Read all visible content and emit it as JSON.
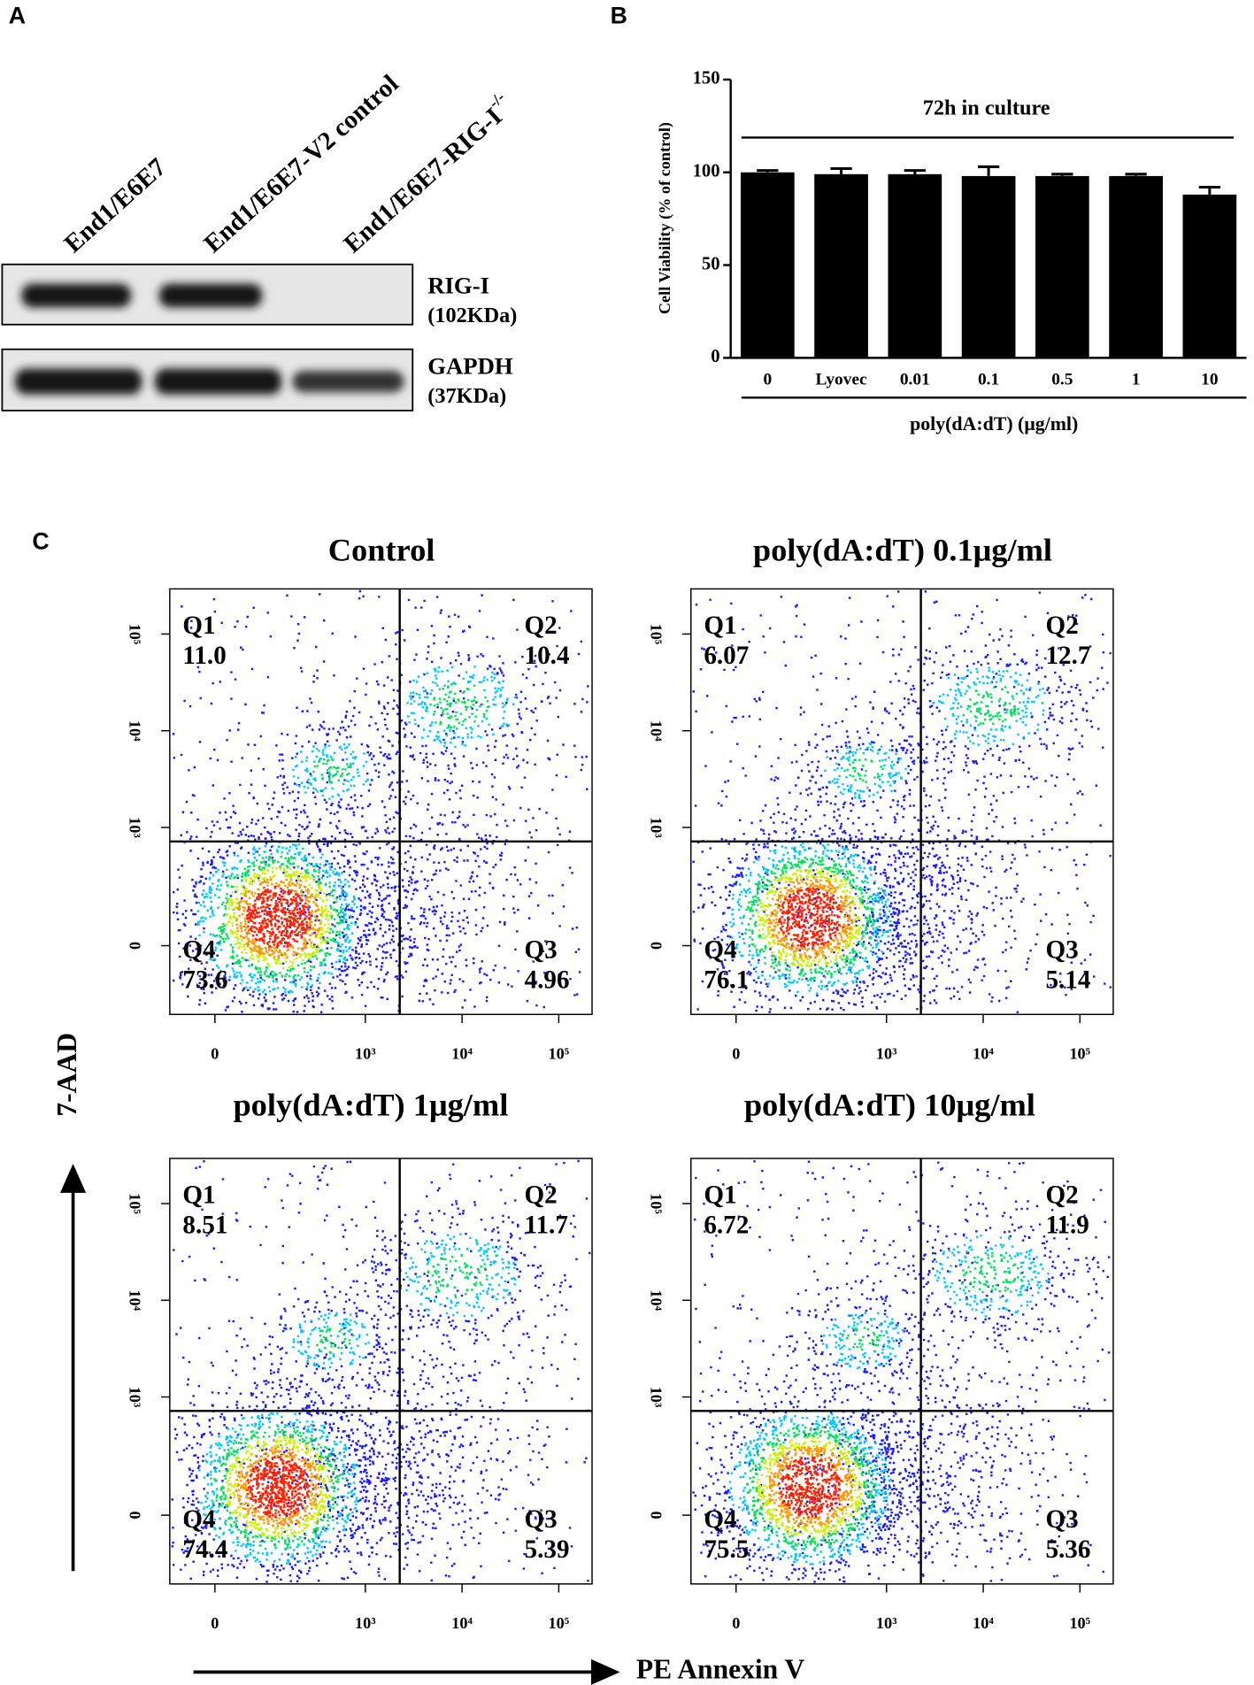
{
  "panel_labels": [
    "A",
    "B",
    "C"
  ],
  "western_blot": {
    "lanes": [
      {
        "text": "End1/E6E7"
      },
      {
        "text": "End1/E6E7-V2 control"
      },
      {
        "text": "End1/E6E7-RIG-I",
        "superscript": "-/-"
      }
    ],
    "bands": [
      {
        "name": "RIG-I",
        "size": "(102KDa)"
      },
      {
        "name": "GAPDH",
        "size": "(37KDa)"
      }
    ]
  },
  "flow_axes": {
    "xlabel": "PE Annexin V",
    "ylabel": "7-AAD"
  },
  "chart_data": [
    {
      "type": "bar",
      "annotation": "72h in culture",
      "ylabel": "Cell Viability (% of control)",
      "xlabel": "poly(dA:dT) (μg/ml)",
      "categories": [
        "0",
        "Lyovec",
        "0.01",
        "0.1",
        "0.5",
        "1",
        "10"
      ],
      "values": [
        100,
        99,
        99,
        98,
        98,
        98,
        88
      ],
      "errors": [
        1,
        3,
        2,
        5,
        1,
        1,
        4
      ],
      "color": "#000000",
      "ylim": [
        0,
        150
      ],
      "yticks": [
        0,
        50,
        100,
        150
      ]
    },
    {
      "type": "flow",
      "title": "Control",
      "quadrants": [
        {
          "name": "Q1",
          "percent": "11.0"
        },
        {
          "name": "Q2",
          "percent": "10.4"
        },
        {
          "name": "Q3",
          "percent": "4.96"
        },
        {
          "name": "Q4",
          "percent": "73.6"
        }
      ],
      "xticks": [
        0,
        {
          "value": 1000,
          "label": "10³"
        },
        {
          "value": 10000,
          "label": "10⁴"
        },
        {
          "value": 100000,
          "label": "10⁵"
        }
      ],
      "yticks": [
        0,
        {
          "value": 1000,
          "label": "10³"
        },
        {
          "value": 10000,
          "label": "10⁴"
        },
        {
          "value": 100000,
          "label": "10⁵"
        }
      ]
    },
    {
      "type": "flow",
      "title": "poly(dA:dT) 0.1μg/ml",
      "quadrants": [
        {
          "name": "Q1",
          "percent": "6.07"
        },
        {
          "name": "Q2",
          "percent": "12.7"
        },
        {
          "name": "Q3",
          "percent": "5.14"
        },
        {
          "name": "Q4",
          "percent": "76.1"
        }
      ],
      "xticks": [
        0,
        {
          "value": 1000,
          "label": "10³"
        },
        {
          "value": 10000,
          "label": "10⁴"
        },
        {
          "value": 100000,
          "label": "10⁵"
        }
      ],
      "yticks": [
        0,
        {
          "value": 1000,
          "label": "10³"
        },
        {
          "value": 10000,
          "label": "10⁴"
        },
        {
          "value": 100000,
          "label": "10⁵"
        }
      ]
    },
    {
      "type": "flow",
      "title": "poly(dA:dT) 1μg/ml",
      "quadrants": [
        {
          "name": "Q1",
          "percent": "8.51"
        },
        {
          "name": "Q2",
          "percent": "11.7"
        },
        {
          "name": "Q3",
          "percent": "5.39"
        },
        {
          "name": "Q4",
          "percent": "74.4"
        }
      ],
      "xticks": [
        0,
        {
          "value": 1000,
          "label": "10³"
        },
        {
          "value": 10000,
          "label": "10⁴"
        },
        {
          "value": 100000,
          "label": "10⁵"
        }
      ],
      "yticks": [
        0,
        {
          "value": 1000,
          "label": "10³"
        },
        {
          "value": 10000,
          "label": "10⁴"
        },
        {
          "value": 100000,
          "label": "10⁵"
        }
      ]
    },
    {
      "type": "flow",
      "title": "poly(dA:dT) 10μg/ml",
      "quadrants": [
        {
          "name": "Q1",
          "percent": "6.72"
        },
        {
          "name": "Q2",
          "percent": "11.9"
        },
        {
          "name": "Q3",
          "percent": "5.36"
        },
        {
          "name": "Q4",
          "percent": "75.5"
        }
      ],
      "xticks": [
        0,
        {
          "value": 1000,
          "label": "10³"
        },
        {
          "value": 10000,
          "label": "10⁴"
        },
        {
          "value": 100000,
          "label": "10⁵"
        }
      ],
      "yticks": [
        0,
        {
          "value": 1000,
          "label": "10³"
        },
        {
          "value": 10000,
          "label": "10⁴"
        },
        {
          "value": 100000,
          "label": "10⁵"
        }
      ]
    }
  ]
}
